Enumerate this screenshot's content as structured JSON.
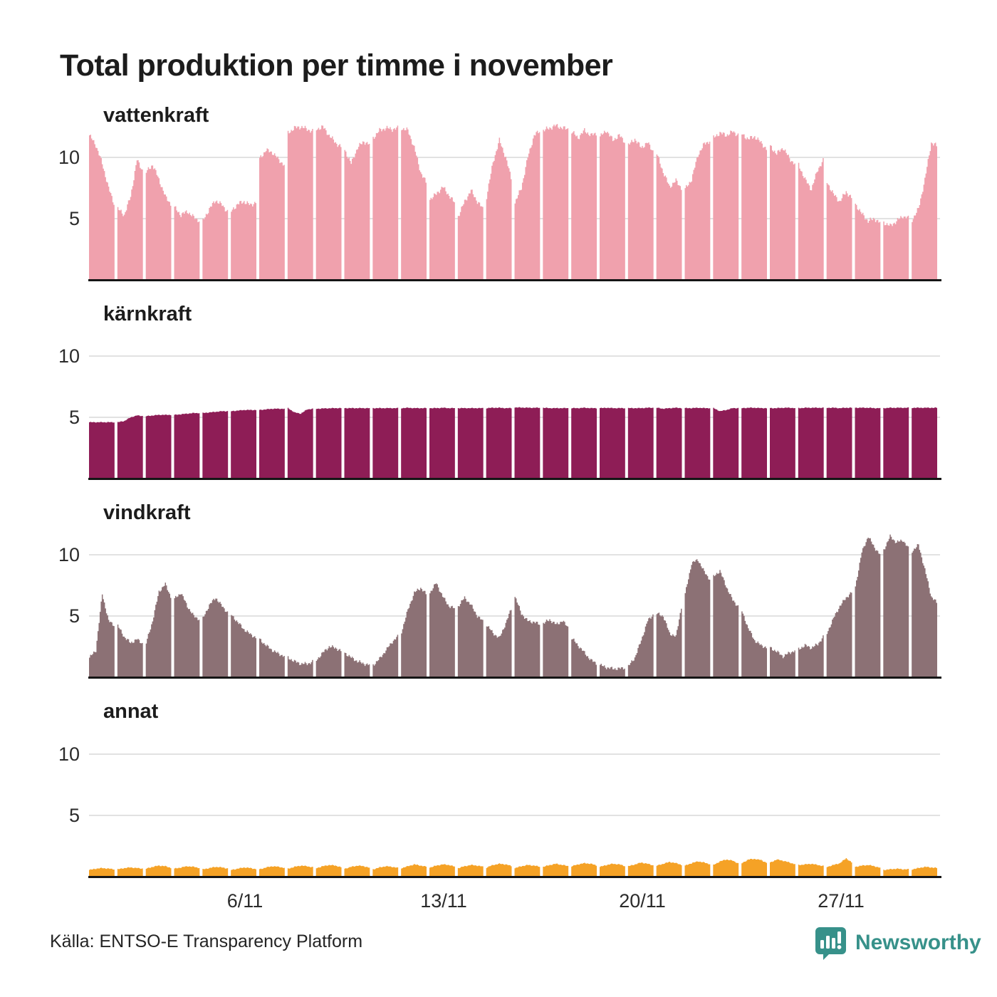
{
  "title": "Total produktion per timme i november",
  "source": "Källa: ENTSO-E Transparency Platform",
  "branding": {
    "name": "Newsworthy",
    "color": "#37918a"
  },
  "axes": {
    "ytick_labels": [
      "10",
      "5"
    ],
    "xtick_labels": [
      "6/11",
      "13/11",
      "20/11",
      "27/11"
    ],
    "xtick_days": [
      6,
      13,
      20,
      27
    ]
  },
  "chart_data": {
    "type": "area",
    "title": "Total produktion per timme i november",
    "x_description": "30 dagar i november, timvisa värden (24 per dag)",
    "control_hours": [
      0,
      6,
      12,
      18,
      24
    ],
    "ylim": [
      0,
      12.9
    ],
    "yticks": [
      5,
      10
    ],
    "grid": true,
    "xtick_labels": [
      "6/11",
      "13/11",
      "20/11",
      "27/11"
    ],
    "xtick_days": [
      6,
      13,
      20,
      27
    ],
    "series": [
      {
        "name": "vattenkraft",
        "color": "#f0a1ad",
        "days": [
          [
            11.8,
            11.0,
            9.5,
            7.5,
            6.0
          ],
          [
            5.8,
            5.3,
            6.8,
            9.8,
            8.8
          ],
          [
            8.8,
            9.4,
            8.2,
            6.8,
            6.1
          ],
          [
            5.9,
            5.3,
            5.6,
            5.1,
            4.8
          ],
          [
            4.8,
            5.8,
            6.5,
            6.1,
            5.5
          ],
          [
            5.6,
            6.2,
            6.4,
            6.1,
            6.4
          ],
          [
            9.9,
            10.6,
            10.4,
            9.8,
            9.3
          ],
          [
            12.0,
            12.4,
            12.5,
            12.3,
            12.1
          ],
          [
            12.3,
            12.5,
            11.8,
            11.2,
            10.8
          ],
          [
            10.6,
            9.5,
            10.8,
            11.3,
            11.0
          ],
          [
            11.6,
            12.2,
            12.4,
            12.3,
            12.4
          ],
          [
            12.4,
            12.2,
            10.8,
            8.8,
            7.8
          ],
          [
            6.6,
            7.0,
            7.6,
            6.9,
            6.2
          ],
          [
            5.2,
            6.4,
            7.3,
            6.4,
            5.7
          ],
          [
            6.8,
            9.6,
            11.4,
            10.0,
            8.0
          ],
          [
            6.3,
            7.5,
            10.0,
            11.8,
            12.2
          ],
          [
            12.2,
            12.4,
            12.6,
            12.4,
            12.3
          ],
          [
            12.1,
            11.6,
            12.2,
            11.8,
            12.0
          ],
          [
            11.7,
            12.2,
            11.4,
            11.8,
            11.2
          ],
          [
            11.0,
            11.5,
            10.8,
            11.2,
            10.4
          ],
          [
            10.3,
            8.8,
            7.6,
            8.1,
            7.4
          ],
          [
            7.4,
            8.2,
            10.2,
            11.1,
            11.4
          ],
          [
            11.6,
            12.0,
            11.8,
            12.1,
            11.8
          ],
          [
            11.9,
            11.5,
            11.7,
            11.2,
            10.6
          ],
          [
            10.9,
            10.3,
            10.8,
            9.9,
            9.4
          ],
          [
            9.4,
            8.2,
            7.4,
            9.0,
            9.9
          ],
          [
            8.0,
            7.0,
            6.4,
            7.2,
            6.6
          ],
          [
            6.2,
            5.4,
            4.8,
            5.0,
            4.6
          ],
          [
            4.7,
            4.4,
            4.8,
            5.2,
            5.0
          ],
          [
            4.9,
            5.8,
            8.2,
            11.2,
            10.9
          ]
        ]
      },
      {
        "name": "kärnkraft",
        "color": "#8e1d56",
        "days": [
          [
            4.6,
            4.6,
            4.6,
            4.6,
            4.6
          ],
          [
            4.6,
            4.7,
            5.0,
            5.15,
            5.1
          ],
          [
            5.1,
            5.15,
            5.2,
            5.2,
            5.2
          ],
          [
            5.2,
            5.25,
            5.3,
            5.35,
            5.35
          ],
          [
            5.35,
            5.4,
            5.45,
            5.5,
            5.5
          ],
          [
            5.5,
            5.55,
            5.6,
            5.6,
            5.6
          ],
          [
            5.6,
            5.65,
            5.7,
            5.7,
            5.7
          ],
          [
            5.75,
            5.4,
            5.3,
            5.65,
            5.7
          ],
          [
            5.7,
            5.72,
            5.74,
            5.75,
            5.75
          ],
          [
            5.75,
            5.75,
            5.75,
            5.75,
            5.75
          ],
          [
            5.75,
            5.75,
            5.75,
            5.75,
            5.75
          ],
          [
            5.75,
            5.78,
            5.75,
            5.75,
            5.75
          ],
          [
            5.75,
            5.75,
            5.78,
            5.75,
            5.75
          ],
          [
            5.75,
            5.75,
            5.75,
            5.75,
            5.75
          ],
          [
            5.75,
            5.78,
            5.78,
            5.75,
            5.75
          ],
          [
            5.8,
            5.8,
            5.78,
            5.78,
            5.78
          ],
          [
            5.78,
            5.75,
            5.75,
            5.75,
            5.75
          ],
          [
            5.75,
            5.75,
            5.78,
            5.75,
            5.75
          ],
          [
            5.75,
            5.78,
            5.75,
            5.75,
            5.75
          ],
          [
            5.75,
            5.75,
            5.75,
            5.78,
            5.78
          ],
          [
            5.78,
            5.7,
            5.75,
            5.78,
            5.75
          ],
          [
            5.75,
            5.75,
            5.78,
            5.75,
            5.75
          ],
          [
            5.75,
            5.5,
            5.6,
            5.75,
            5.75
          ],
          [
            5.75,
            5.78,
            5.78,
            5.75,
            5.75
          ],
          [
            5.75,
            5.75,
            5.78,
            5.78,
            5.75
          ],
          [
            5.75,
            5.78,
            5.78,
            5.78,
            5.78
          ],
          [
            5.78,
            5.78,
            5.75,
            5.78,
            5.78
          ],
          [
            5.78,
            5.78,
            5.78,
            5.75,
            5.75
          ],
          [
            5.75,
            5.78,
            5.78,
            5.78,
            5.78
          ],
          [
            5.78,
            5.78,
            5.78,
            5.78,
            5.78
          ]
        ]
      },
      {
        "name": "vindkraft",
        "color": "#8c7175",
        "days": [
          [
            1.6,
            2.2,
            6.8,
            4.6,
            4.2
          ],
          [
            4.2,
            3.3,
            2.8,
            3.1,
            2.7
          ],
          [
            2.8,
            4.6,
            7.0,
            7.6,
            6.4
          ],
          [
            6.4,
            6.9,
            5.8,
            5.0,
            4.7
          ],
          [
            4.8,
            5.9,
            6.5,
            5.8,
            5.2
          ],
          [
            5.1,
            4.5,
            3.9,
            3.5,
            3.2
          ],
          [
            3.1,
            2.6,
            2.2,
            1.9,
            1.7
          ],
          [
            1.6,
            1.3,
            1.1,
            1.1,
            1.3
          ],
          [
            1.4,
            2.0,
            2.5,
            2.4,
            2.1
          ],
          [
            2.0,
            1.6,
            1.3,
            1.1,
            1.0
          ],
          [
            1.0,
            1.5,
            2.2,
            2.9,
            3.4
          ],
          [
            3.7,
            5.5,
            6.9,
            7.3,
            6.7
          ],
          [
            6.9,
            7.7,
            6.6,
            5.8,
            5.6
          ],
          [
            5.8,
            6.5,
            5.9,
            5.0,
            4.5
          ],
          [
            4.3,
            3.6,
            3.2,
            4.4,
            5.8
          ],
          [
            6.6,
            5.2,
            4.6,
            4.5,
            4.3
          ],
          [
            4.4,
            4.7,
            4.3,
            4.6,
            4.0
          ],
          [
            3.2,
            2.6,
            2.0,
            1.4,
            1.1
          ],
          [
            1.0,
            0.8,
            0.7,
            0.7,
            0.8
          ],
          [
            0.9,
            1.6,
            3.0,
            4.6,
            5.2
          ],
          [
            5.2,
            5.0,
            3.6,
            3.3,
            6.2
          ],
          [
            6.8,
            9.3,
            9.6,
            8.6,
            7.9
          ],
          [
            8.2,
            8.7,
            7.4,
            6.3,
            5.7
          ],
          [
            5.4,
            4.0,
            3.0,
            2.6,
            2.4
          ],
          [
            2.4,
            2.1,
            1.7,
            2.0,
            2.2
          ],
          [
            2.3,
            2.6,
            2.4,
            2.7,
            3.4
          ],
          [
            3.6,
            4.8,
            5.8,
            6.5,
            7.0
          ],
          [
            7.4,
            10.2,
            11.5,
            10.6,
            9.9
          ],
          [
            10.4,
            11.5,
            11.0,
            11.2,
            10.4
          ],
          [
            10.3,
            10.8,
            8.8,
            6.6,
            6.0
          ]
        ]
      },
      {
        "name": "annat",
        "color": "#f5a226",
        "days": [
          [
            0.55,
            0.65,
            0.7,
            0.65,
            0.6
          ],
          [
            0.6,
            0.7,
            0.75,
            0.7,
            0.65
          ],
          [
            0.65,
            0.8,
            0.9,
            0.85,
            0.7
          ],
          [
            0.65,
            0.75,
            0.85,
            0.8,
            0.7
          ],
          [
            0.6,
            0.7,
            0.8,
            0.75,
            0.65
          ],
          [
            0.55,
            0.65,
            0.75,
            0.7,
            0.6
          ],
          [
            0.6,
            0.75,
            0.85,
            0.8,
            0.7
          ],
          [
            0.65,
            0.8,
            0.9,
            0.85,
            0.75
          ],
          [
            0.7,
            0.85,
            0.95,
            0.9,
            0.75
          ],
          [
            0.65,
            0.8,
            0.9,
            0.85,
            0.7
          ],
          [
            0.6,
            0.75,
            0.85,
            0.8,
            0.7
          ],
          [
            0.7,
            0.85,
            1.0,
            0.9,
            0.8
          ],
          [
            0.75,
            0.9,
            1.0,
            0.95,
            0.8
          ],
          [
            0.7,
            0.85,
            0.95,
            0.9,
            0.8
          ],
          [
            0.75,
            0.95,
            1.05,
            1.0,
            0.85
          ],
          [
            0.7,
            0.85,
            0.95,
            0.9,
            0.8
          ],
          [
            0.8,
            0.95,
            1.05,
            0.95,
            0.85
          ],
          [
            0.85,
            1.0,
            1.1,
            1.05,
            0.9
          ],
          [
            0.8,
            0.95,
            1.05,
            1.0,
            0.85
          ],
          [
            0.85,
            1.0,
            1.15,
            1.05,
            0.9
          ],
          [
            0.9,
            1.05,
            1.2,
            1.1,
            0.95
          ],
          [
            0.9,
            1.1,
            1.25,
            1.15,
            1.0
          ],
          [
            0.95,
            1.25,
            1.4,
            1.3,
            1.05
          ],
          [
            1.1,
            1.4,
            1.45,
            1.35,
            1.1
          ],
          [
            1.15,
            1.4,
            1.3,
            1.15,
            1.0
          ],
          [
            0.95,
            1.0,
            1.05,
            0.95,
            0.85
          ],
          [
            0.8,
            0.95,
            1.1,
            1.5,
            1.1
          ],
          [
            0.8,
            0.9,
            0.95,
            0.85,
            0.7
          ],
          [
            0.55,
            0.6,
            0.65,
            0.6,
            0.6
          ],
          [
            0.6,
            0.7,
            0.8,
            0.75,
            0.7
          ]
        ]
      }
    ]
  },
  "layout_values": {
    "panel_svg_tops": [
      171,
      450,
      729,
      1009
    ],
    "baseline_tops": [
      392,
      671,
      950,
      1230
    ],
    "label_tops": [
      146,
      425,
      704,
      983
    ],
    "ytick10_tops": [
      204,
      483,
      762,
      1042
    ],
    "ytick5_tops": [
      290,
      569,
      848,
      1128
    ],
    "xtick_centers": [
      344,
      623,
      902,
      1181
    ]
  }
}
